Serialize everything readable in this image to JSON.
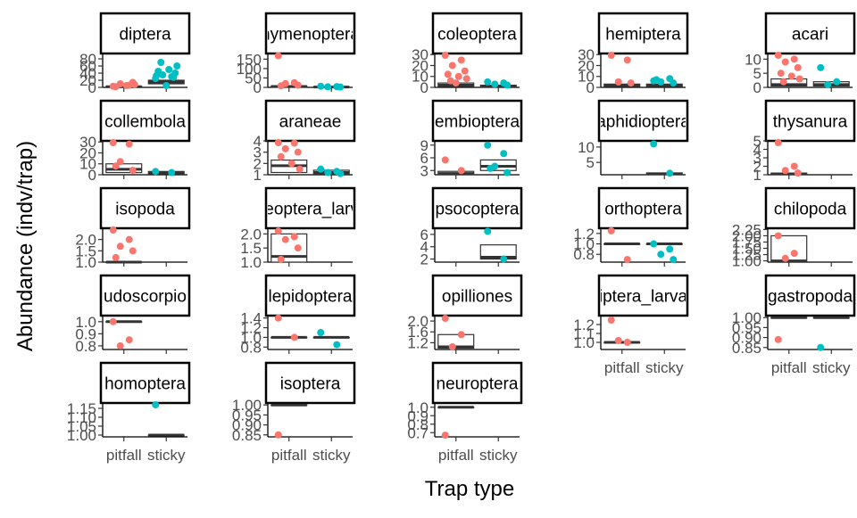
{
  "chart_data": {
    "type": "boxplot-facets",
    "xlabel": "Trap type",
    "ylabel": "Abundance (indv/trap)",
    "categories": [
      "pitfall",
      "sticky"
    ],
    "colors": {
      "pitfall": "#F8766D",
      "sticky": "#00BFC4"
    },
    "panels": [
      {
        "title": "diptera",
        "ylim": [
          0,
          95
        ],
        "ticks": [
          0,
          20,
          40,
          60,
          80
        ],
        "tick_labels": [
          "0",
          "20",
          "40",
          "60",
          "80"
        ],
        "boxes": {
          "pitfall": {
            "q1": 1,
            "med": 2,
            "q3": 3
          },
          "sticky": {
            "q1": 10,
            "med": 15,
            "q3": 20
          }
        },
        "points": {
          "pitfall": [
            3,
            6,
            10,
            14,
            2,
            5,
            8
          ],
          "sticky": [
            25,
            30,
            35,
            40,
            45,
            50,
            60,
            70,
            5,
            28,
            33
          ]
        }
      },
      {
        "title": "hymenoptera",
        "ylim": [
          0,
          180
        ],
        "ticks": [
          0,
          50,
          100,
          150
        ],
        "tick_labels": [
          "0",
          "50",
          "100",
          "150"
        ],
        "boxes": {
          "pitfall": {
            "q1": 3,
            "med": 5,
            "q3": 8
          },
          "sticky": {
            "q1": 1,
            "med": 2,
            "q3": 3
          }
        },
        "points": {
          "pitfall": [
            168,
            25,
            20,
            12,
            8
          ],
          "sticky": [
            6,
            4,
            3,
            2
          ]
        }
      },
      {
        "title": "coleoptera",
        "ylim": [
          0,
          31
        ],
        "ticks": [
          0,
          10,
          20,
          30
        ],
        "tick_labels": [
          "0",
          "10",
          "20",
          "30"
        ],
        "boxes": {
          "pitfall": {
            "q1": 1,
            "med": 2,
            "q3": 4
          },
          "sticky": {
            "q1": 0.5,
            "med": 1,
            "q3": 2
          }
        },
        "points": {
          "pitfall": [
            30,
            25,
            20,
            15,
            12,
            10,
            8,
            6,
            4
          ],
          "sticky": [
            5,
            4,
            3,
            2
          ]
        }
      },
      {
        "title": "hemiptera",
        "ylim": [
          0,
          31
        ],
        "ticks": [
          0,
          10,
          20,
          30
        ],
        "tick_labels": [
          "0",
          "10",
          "20",
          "30"
        ],
        "boxes": {
          "pitfall": {
            "q1": 1,
            "med": 2,
            "q3": 3
          },
          "sticky": {
            "q1": 1,
            "med": 2,
            "q3": 3
          }
        },
        "points": {
          "pitfall": [
            30,
            25,
            5,
            4
          ],
          "sticky": [
            6,
            8,
            5,
            4,
            7
          ]
        }
      },
      {
        "title": "acari",
        "ylim": [
          0,
          12
        ],
        "ticks": [
          0,
          5,
          10
        ],
        "tick_labels": [
          "0",
          "5",
          "10"
        ],
        "boxes": {
          "pitfall": {
            "q1": 0.5,
            "med": 1,
            "q3": 3
          },
          "sticky": {
            "q1": 0.5,
            "med": 1,
            "q3": 2
          }
        },
        "points": {
          "pitfall": [
            12,
            10,
            9,
            7,
            5,
            4,
            3,
            2
          ],
          "sticky": [
            7,
            2,
            1
          ]
        }
      },
      {
        "title": "collembola",
        "ylim": [
          0,
          31
        ],
        "ticks": [
          0,
          10,
          20,
          30
        ],
        "tick_labels": [
          "0",
          "10",
          "20",
          "30"
        ],
        "boxes": {
          "pitfall": {
            "q1": 2,
            "med": 5,
            "q3": 10
          },
          "sticky": {
            "q1": 1,
            "med": 2,
            "q3": 3
          }
        },
        "points": {
          "pitfall": [
            30,
            28,
            12,
            4,
            8
          ],
          "sticky": [
            3,
            2
          ]
        }
      },
      {
        "title": "araneae",
        "ylim": [
          1,
          4
        ],
        "ticks": [
          1,
          2,
          3,
          4
        ],
        "tick_labels": [
          "1",
          "2",
          "3",
          "4"
        ],
        "boxes": {
          "pitfall": {
            "q1": 1.2,
            "med": 1.8,
            "q3": 2.3
          },
          "sticky": {
            "q1": 1.1,
            "med": 1.2,
            "q3": 1.4
          }
        },
        "points": {
          "pitfall": [
            4,
            3.8,
            3.3,
            3,
            2.6,
            2,
            1.5
          ],
          "sticky": [
            1.5,
            1.3,
            1.2,
            1.1
          ]
        }
      },
      {
        "title": "embioptera",
        "ylim": [
          2,
          10
        ],
        "ticks": [
          3,
          6,
          9
        ],
        "tick_labels": [
          "3",
          "6",
          "9"
        ],
        "boxes": {
          "pitfall": {
            "q1": 2,
            "med": 2.3,
            "q3": 2.8
          },
          "sticky": {
            "q1": 3,
            "med": 4,
            "q3": 5.5
          }
        },
        "points": {
          "pitfall": [
            5.5,
            3
          ],
          "sticky": [
            9,
            7,
            4,
            2.5,
            3.5
          ]
        }
      },
      {
        "title": "aphidioptera",
        "ylim": [
          1,
          12
        ],
        "ticks": [
          5,
          10
        ],
        "tick_labels": [
          "5",
          "10"
        ],
        "boxes": {
          "sticky": {
            "q1": 1,
            "med": 1.3,
            "q3": 1.6
          }
        },
        "points": {
          "pitfall": [],
          "sticky": [
            11,
            1.5
          ]
        }
      },
      {
        "title": "thysanura",
        "ylim": [
          1,
          5
        ],
        "ticks": [
          1,
          2,
          3,
          4,
          5
        ],
        "tick_labels": [
          "1",
          "2",
          "3",
          "4",
          "5"
        ],
        "boxes": {
          "pitfall": {
            "q1": 1,
            "med": 1.1,
            "q3": 1.2
          }
        },
        "points": {
          "pitfall": [
            5,
            2,
            1.5,
            1.2
          ],
          "sticky": []
        }
      },
      {
        "title": "isopoda",
        "ylim": [
          1,
          2.5
        ],
        "ticks": [
          1.0,
          1.5,
          2.0
        ],
        "tick_labels": [
          "1.0",
          "1.5",
          "2.0"
        ],
        "boxes": {
          "pitfall": {
            "q1": 1,
            "med": 1,
            "q3": 1
          }
        },
        "points": {
          "pitfall": [
            2.5,
            2,
            1.7,
            1.5,
            1.2
          ],
          "sticky": []
        }
      },
      {
        "title": "coleoptera_larvae",
        "ylim": [
          1,
          2.2
        ],
        "ticks": [
          1.0,
          1.5,
          2.0
        ],
        "tick_labels": [
          "1.0",
          "1.5",
          "2.0"
        ],
        "boxes": {
          "pitfall": {
            "q1": 1,
            "med": 1.2,
            "q3": 2
          }
        },
        "points": {
          "pitfall": [
            2.1,
            1.9,
            1.8,
            1.5,
            1.1
          ],
          "sticky": []
        }
      },
      {
        "title": "psocoptera",
        "ylim": [
          1.5,
          7
        ],
        "ticks": [
          2,
          4,
          6
        ],
        "tick_labels": [
          "2",
          "4",
          "6"
        ],
        "boxes": {
          "sticky": {
            "q1": 2,
            "med": 2.3,
            "q3": 4.3
          }
        },
        "points": {
          "pitfall": [],
          "sticky": [
            6.5,
            2
          ]
        }
      },
      {
        "title": "orthoptera",
        "ylim": [
          0.65,
          1.3
        ],
        "ticks": [
          0.8,
          1.0,
          1.2
        ],
        "tick_labels": [
          "0.8",
          "1.0",
          "1.2"
        ],
        "boxes": {
          "pitfall": {
            "q1": 1,
            "med": 1,
            "q3": 1
          },
          "sticky": {
            "q1": 1,
            "med": 1,
            "q3": 1
          }
        },
        "points": {
          "pitfall": [
            1.25,
            0.7
          ],
          "sticky": [
            1.0,
            0.9,
            0.8,
            0.7
          ]
        }
      },
      {
        "title": "chilopoda",
        "ylim": [
          0.95,
          2.3
        ],
        "ticks": [
          1.0,
          1.25,
          1.5,
          1.75,
          2.0,
          2.25
        ],
        "tick_labels": [
          "1.00",
          "1.25",
          "1.50",
          "1.75",
          "2.00",
          "2.25"
        ],
        "boxes": {
          "pitfall": {
            "q1": 1,
            "med": 1,
            "q3": 2
          }
        },
        "points": {
          "pitfall": [
            2,
            1.3,
            1.1
          ],
          "sticky": []
        }
      },
      {
        "title": "pseudoscorpiones",
        "ylim": [
          0.77,
          1.05
        ],
        "ticks": [
          0.8,
          0.9,
          1.0
        ],
        "tick_labels": [
          "0.8",
          "0.9",
          "1.0"
        ],
        "boxes": {
          "pitfall": {
            "q1": 1,
            "med": 1,
            "q3": 1
          }
        },
        "points": {
          "pitfall": [
            1.0,
            0.85,
            0.8
          ],
          "sticky": []
        }
      },
      {
        "title": "lepidoptera",
        "ylim": [
          0.75,
          1.45
        ],
        "ticks": [
          0.8,
          1.0,
          1.2,
          1.4
        ],
        "tick_labels": [
          "0.8",
          "1.0",
          "1.2",
          "1.4"
        ],
        "boxes": {
          "pitfall": {
            "q1": 1,
            "med": 1,
            "q3": 1
          },
          "sticky": {
            "q1": 1,
            "med": 1,
            "q3": 1
          }
        },
        "points": {
          "pitfall": [
            1.4,
            1.0
          ],
          "sticky": [
            1.1,
            0.85
          ]
        }
      },
      {
        "title": "opilliones",
        "ylim": [
          0.95,
          2.2
        ],
        "ticks": [
          1.2,
          1.6,
          2.0
        ],
        "tick_labels": [
          "1.2",
          "1.6",
          "2.0"
        ],
        "boxes": {
          "pitfall": {
            "q1": 1,
            "med": 1.05,
            "q3": 1.5
          }
        },
        "points": {
          "pitfall": [
            2.1,
            1.5,
            1.05
          ],
          "sticky": []
        }
      },
      {
        "title": "diptera_larvae",
        "ylim": [
          0.92,
          1.3
        ],
        "ticks": [
          1.0,
          1.1,
          1.2
        ],
        "tick_labels": [
          "1.0",
          "1.1",
          "1.2"
        ],
        "boxes": {
          "pitfall": {
            "q1": 1,
            "med": 1,
            "q3": 1
          }
        },
        "points": {
          "pitfall": [
            1.25,
            1.0,
            1.02
          ],
          "sticky": []
        }
      },
      {
        "title": "gastropoda",
        "ylim": [
          0.84,
          1.01
        ],
        "ticks": [
          0.85,
          0.9,
          0.95,
          1.0
        ],
        "tick_labels": [
          "0.85",
          "0.90",
          "0.95",
          "1.00"
        ],
        "boxes": {
          "pitfall": {
            "q1": 1,
            "med": 1,
            "q3": 1
          },
          "sticky": {
            "q1": 1,
            "med": 1,
            "q3": 1
          }
        },
        "points": {
          "pitfall": [
            0.89
          ],
          "sticky": [
            0.85
          ]
        }
      },
      {
        "title": "homoptera",
        "ylim": [
          0.99,
          1.18
        ],
        "ticks": [
          1.0,
          1.05,
          1.1,
          1.15
        ],
        "tick_labels": [
          "1.00",
          "1.05",
          "1.10",
          "1.15"
        ],
        "boxes": {
          "sticky": {
            "q1": 1,
            "med": 1,
            "q3": 1
          }
        },
        "points": {
          "pitfall": [],
          "sticky": [
            1.17
          ]
        }
      },
      {
        "title": "isoptera",
        "ylim": [
          0.84,
          1.01
        ],
        "ticks": [
          0.85,
          0.9,
          0.95,
          1.0
        ],
        "tick_labels": [
          "0.85",
          "0.90",
          "0.95",
          "1.00"
        ],
        "boxes": {
          "pitfall": {
            "q1": 1,
            "med": 1,
            "q3": 1
          }
        },
        "points": {
          "pitfall": [
            0.85
          ],
          "sticky": []
        }
      },
      {
        "title": "neuroptera",
        "ylim": [
          0.65,
          1.05
        ],
        "ticks": [
          0.7,
          0.8,
          0.9,
          1.0
        ],
        "tick_labels": [
          "0.7",
          "0.8",
          "0.9",
          "1.0"
        ],
        "boxes": {
          "pitfall": {
            "q1": 1,
            "med": 1,
            "q3": 1
          }
        },
        "points": {
          "pitfall": [
            0.67
          ],
          "sticky": []
        }
      }
    ]
  }
}
